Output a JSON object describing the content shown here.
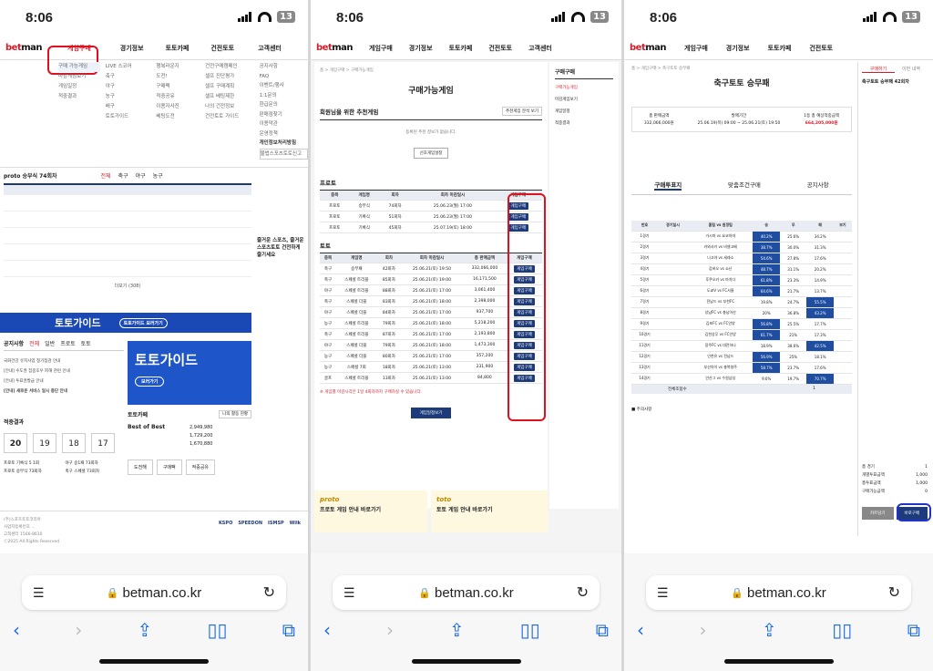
{
  "status": {
    "time": "8:06",
    "battery": "13"
  },
  "browser": {
    "url": "betman.co.kr"
  },
  "p1": {
    "logo_a": "bet",
    "logo_b": "man",
    "menus": [
      "게임구매",
      "경기정보",
      "토토카페",
      "건전토토",
      "고객센터"
    ],
    "sub1": [
      "구매 가능게임",
      "마감게임보기",
      "게임일정",
      "적중결과"
    ],
    "sub2": [
      "LIVE 스코어",
      "축구",
      "야구",
      "농구",
      "배구",
      "토토가이드"
    ],
    "sub3": [
      "행복라운지",
      "도전!",
      "구매팩",
      "적중공유",
      "이용자사진",
      "베팅도전"
    ],
    "sub4": [
      "건전구매캠페인",
      "셀프 진단평가",
      "셀프 구매계획",
      "셀프 베팅제한",
      "나의 건전정보",
      "건전토토 가이드"
    ],
    "sub5": [
      "공지사항",
      "FAQ",
      "이벤트/행사",
      "1:1문의",
      "환급문의",
      "판매점찾기",
      "이용약관",
      "운영정책",
      "개인정보처리방침",
      "불법스포츠토토신고"
    ],
    "proto_title": "proto 승부식 74회차",
    "proto_tabs": [
      "전체",
      "축구",
      "야구",
      "농구"
    ],
    "more": "더보기 (308)",
    "side_text": "즐거운 스포츠, 즐거운 스포츠토토 건전하게 즐기세요",
    "guide_bar": "토토가이드",
    "guide_btn": "토토가이드 보러가기",
    "notice_title": "공지사항",
    "notice_tabs": [
      "전체",
      "일반",
      "프로토",
      "토토"
    ],
    "notices": [
      "국화건강 유지사업 정기점검 안내",
      "[안내] 수도권 집중호우 피해 관련 안내",
      "[안내] 투표권발급 안내",
      "[안내] 새로운 서비스 일시 중단 안내"
    ],
    "guide_big": "토토가이드",
    "guide_big_btn": "보러가기",
    "result_title": "적중결과",
    "cafe_title": "토토카페",
    "cafe_more": "나의 활동 현황",
    "best": "Best of Best",
    "best_vals": [
      "2,949,980",
      "1,729,200",
      "1,670,880"
    ],
    "dates": [
      "20",
      "19",
      "18",
      "17"
    ],
    "results": [
      "프로토 기록식 5 1회",
      "야구 승1패 73회차",
      "프로토 승부식 73회차",
      "축구 스페셜 73회차"
    ],
    "cafe_btns": [
      "도전해",
      "구매팩",
      "적중공유"
    ],
    "footer": [
      "(주)스포츠토토코리아",
      "사업자등록번호 ...",
      "고객센터 1566-8610",
      "ⓒ2025 All Rights Reserved"
    ],
    "footer_logos": [
      "KSPO",
      "SPEEDON",
      "ISMSP",
      "Wilk"
    ]
  },
  "p2": {
    "crumb": "홈 > 게임구매 > 구매가능게임",
    "title": "구매가능게임",
    "reco": "회원님을 위한 추천게임",
    "reco_btn": "추천게임 분석 보기",
    "reco_text": "등록된 추천 정보가 없습니다.",
    "reco_btn2": "선호게임설정",
    "proto": "프로토",
    "toto": "토토",
    "headers": [
      "종목",
      "게임명",
      "회차",
      "회차 마감일시",
      "총 판매금액",
      "게임구매"
    ],
    "proto_rows": [
      [
        "프로토",
        "승부식",
        "74회차",
        "25.06.23(월) 17:00"
      ],
      [
        "프로토",
        "기록식",
        "51회차",
        "25.06.23(월) 17:00"
      ],
      [
        "프로토",
        "기록식",
        "45회차",
        "25.07.19(토) 18:00"
      ]
    ],
    "toto_rows": [
      [
        "축구",
        "승무패",
        "42회차",
        "25.06.21(토) 19:50",
        "332,066,000"
      ],
      [
        "축구",
        "스페셜 트리플",
        "85회차",
        "25.06.21(토) 19:00",
        "16,171,500"
      ],
      [
        "야구",
        "스페셜 트리플",
        "88회차",
        "25.06.21(토) 17:00",
        "3,061,400"
      ],
      [
        "축구",
        "스페셜 더블",
        "83회차",
        "25.06.21(토) 18:00",
        "2,398,000"
      ],
      [
        "야구",
        "스페셜 더블",
        "84회차",
        "25.06.21(토) 17:00",
        "937,700"
      ],
      [
        "농구",
        "스페셜 트리플",
        "79회차",
        "25.06.21(토) 18:00",
        "5,218,200"
      ],
      [
        "축구",
        "스페셜 트리플",
        "87회차",
        "25.06.21(토) 17:00",
        "2,193,800"
      ],
      [
        "야구",
        "스페셜 더블",
        "79회차",
        "25.06.21(토) 18:00",
        "1,473,300"
      ],
      [
        "농구",
        "스페셜 더블",
        "80회차",
        "25.06.21(토) 17:00",
        "357,200"
      ],
      [
        "농구",
        "스페셜 7회",
        "18회차",
        "25.06.21(토) 13:00",
        "231,900"
      ],
      [
        "골프",
        "스페셜 트리플",
        "13회차",
        "25.06.21(토) 13:00",
        "84,800"
      ]
    ],
    "buy": "게임구매",
    "sidebar": [
      "구매가능게임",
      "마감게임보기",
      "게임일정",
      "적중결과"
    ],
    "sidebar_title": "구매구매",
    "note": "※ 게임별 마감시각은 1일 4회차까지 구매하실 수 있습니다.",
    "all_btn": "게임일정보기",
    "card1_brand": "proto",
    "card1": "프로토 게임 안내 바로가기",
    "card2_brand": "toto",
    "card2": "토토 게임 안내 바로가기"
  },
  "p3": {
    "crumb": "홈 > 게임구매 > 축구토토 승무패",
    "title": "축구토토 승무패",
    "info_labels": [
      "총 판매금액",
      "발매기간",
      "1등 총 예상적중금액"
    ],
    "info_vals": [
      "332,066,000원",
      "25.06.19(목) 09:00 ~ 25.06.21(토) 19:50",
      "664,205,000원"
    ],
    "tabs": [
      "구매투표지",
      "맞춤조건구매",
      "공지사항"
    ],
    "side_tabs": [
      "구매하기",
      "이번 내역"
    ],
    "side_title": "축구토토 승무패 42회차",
    "side_rows": [
      [
        "총 경기",
        "1"
      ],
      [
        "개별투표금액",
        "1,000"
      ],
      [
        "총투표금액",
        "1,000"
      ],
      [
        "구매가능금액",
        "0"
      ]
    ],
    "side_btns": [
      "카트담기",
      "바로구매"
    ],
    "headers": [
      "번호",
      "경기일시",
      "홈팀 vs 원정팀",
      "승",
      "무",
      "패",
      "보기"
    ],
    "matches": [
      [
        "1경기",
        "가시마",
        "요코하마",
        "40.2%",
        "25.6%",
        "34.2%"
      ],
      [
        "2경기",
        "카와사키",
        "비셀고베",
        "38.7%",
        "30.0%",
        "31.3%"
      ],
      [
        "3경기",
        "나고야",
        "세레소",
        "54.6%",
        "27.8%",
        "17.6%"
      ],
      [
        "4경기",
        "감바오",
        "쇼난",
        "48.7%",
        "31.1%",
        "20.2%"
      ],
      [
        "5경기",
        "후쿠오카",
        "마치다",
        "61.8%",
        "23.3%",
        "14.9%"
      ],
      [
        "6경기",
        "도쿄V",
        "FC서울",
        "64.6%",
        "21.7%",
        "13.7%"
      ],
      [
        "7경기",
        "전남드",
        "부천FC",
        "19.8%",
        "24.7%",
        "55.5%"
      ],
      [
        "8경기",
        "성남FC",
        "충남아산",
        "20%",
        "36.8%",
        "43.2%"
      ],
      [
        "9경기",
        "김포FC",
        "FC안양",
        "56.8%",
        "25.5%",
        "17.7%"
      ],
      [
        "10경기",
        "김천상무",
        "FC안양",
        "61.7%",
        "21%",
        "17.3%"
      ],
      [
        "11경기",
        "광주FC",
        "대전하나",
        "18.9%",
        "38.6%",
        "42.5%"
      ],
      [
        "12경기",
        "인천유",
        "전남드",
        "56.9%",
        "25%",
        "18.1%"
      ],
      [
        "13경기",
        "부산아이",
        "충북청주",
        "58.7%",
        "23.7%",
        "17.6%"
      ],
      [
        "14경기",
        "안산그",
        "수원삼성",
        "9.6%",
        "19.7%",
        "70.7%"
      ]
    ],
    "total": "전체조합수",
    "total_val": "1",
    "notes_title": "■ 주의사항"
  },
  "colors": {
    "accent_red": "#e0101e",
    "navy": "#1d3a7a",
    "blue": "#1f4ea1",
    "banner": "#1a49b5"
  }
}
